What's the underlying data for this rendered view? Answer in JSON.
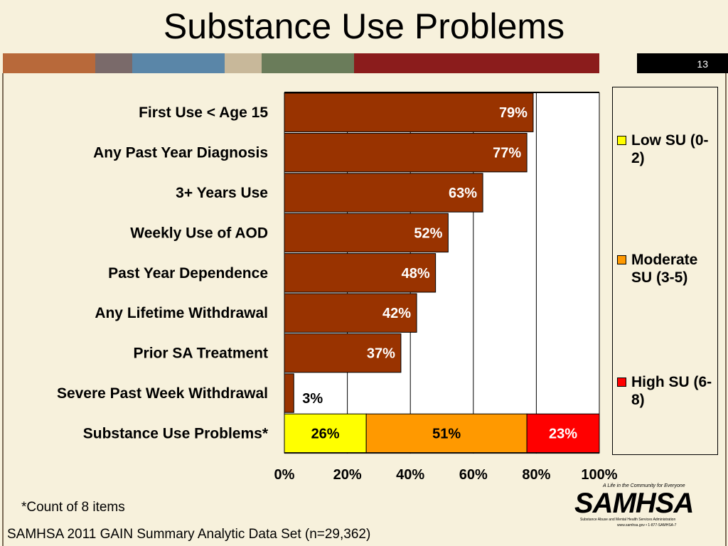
{
  "slide": {
    "title": "Substance Use Problems",
    "page_number": "13",
    "footnote": "*Count of 8 items",
    "source": "SAMHSA 2011 GAIN Summary Analytic Data Set (n=29,362)",
    "strip_colors": [
      "#b8693a",
      "#7a6a6a",
      "#5a86a8",
      "#c8b89a",
      "#6a7c5a",
      "#8b1c1c",
      "#f7f1dc"
    ]
  },
  "logo": {
    "tagline": "A Life in the Community for Everyone",
    "wordmark": "SAMHSA",
    "subtitle": "Substance Abuse and Mental Health Services Administration",
    "url": "www.samhsa.gov • 1-877-SAMHSA-7"
  },
  "legend": [
    {
      "name": "Low SU (0-2)",
      "color": "#ffff00"
    },
    {
      "name": "Moderate SU (3-5)",
      "color": "#ff9900"
    },
    {
      "name": "High SU (6-8)",
      "color": "#ff0000"
    }
  ],
  "chart_data": {
    "type": "bar",
    "orientation": "horizontal",
    "xlim": [
      0,
      100
    ],
    "x_ticks": [
      "0%",
      "20%",
      "40%",
      "60%",
      "80%",
      "100%"
    ],
    "categories": [
      "First Use < Age 15",
      "Any Past Year Diagnosis",
      "3+ Years Use",
      "Weekly Use of AOD",
      "Past Year Dependence",
      "Any Lifetime Withdrawal",
      "Prior SA Treatment",
      "Severe Past Week Withdrawal"
    ],
    "values": [
      79,
      77,
      63,
      52,
      48,
      42,
      37,
      3
    ],
    "value_labels": [
      "79%",
      "77%",
      "63%",
      "52%",
      "48%",
      "42%",
      "37%",
      "3%"
    ],
    "bar_color": "#993300",
    "stacked_row": {
      "category": "Substance Use Problems*",
      "segments": [
        {
          "name": "Low SU (0-2)",
          "value": 26,
          "label": "26%",
          "color": "#ffff00"
        },
        {
          "name": "Moderate SU (3-5)",
          "value": 51,
          "label": "51%",
          "color": "#ff9900"
        },
        {
          "name": "High SU (6-8)",
          "value": 23,
          "label": "23%",
          "color": "#ff0000"
        }
      ]
    },
    "grid": true,
    "legend_position": "right"
  }
}
